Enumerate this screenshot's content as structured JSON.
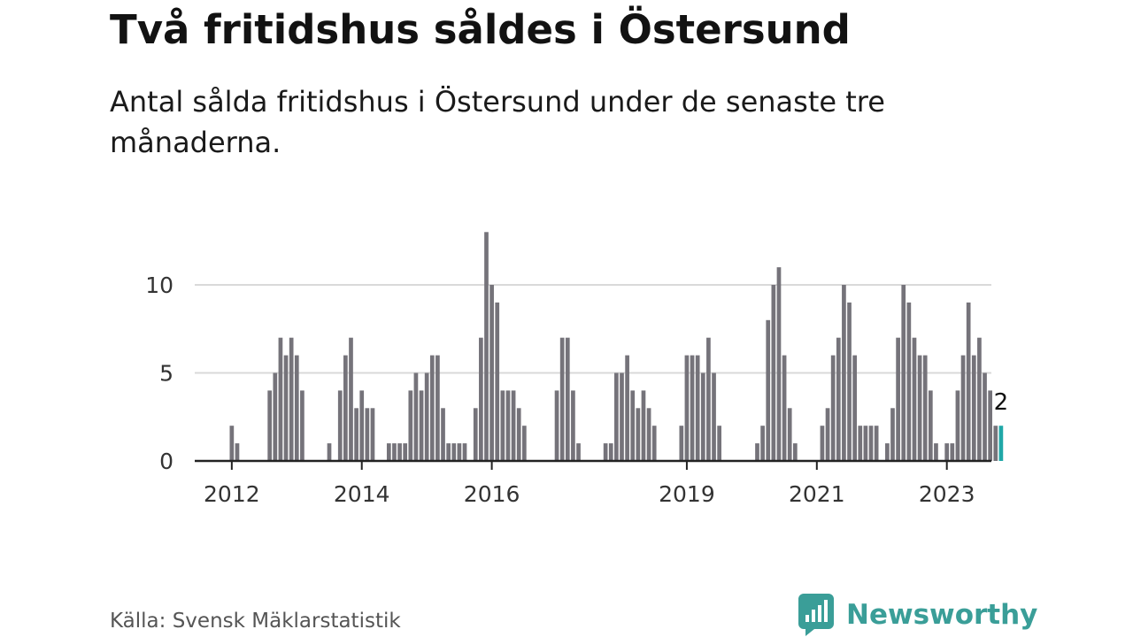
{
  "header": {
    "title": "Två fritidshus såldes i Östersund",
    "subtitle": "Antal sålda fritidshus i Östersund under de senaste tre månaderna."
  },
  "footer": {
    "source": "Källa: Svensk Mäklarstatistik",
    "brand_name": "Newsworthy",
    "brand_color": "#3a9e98",
    "brand_icon": "newsworthy-logo-icon"
  },
  "colors": {
    "bar": "#75737a",
    "highlight": "#20a8a8",
    "grid": "#d9d9d9",
    "axis": "#222222",
    "tick_text": "#333333"
  },
  "chart_data": {
    "type": "bar",
    "x_unit": "month",
    "x_start": "2011-06",
    "x_tick_labels": [
      "2012",
      "2014",
      "2016",
      "2019",
      "2021",
      "2023"
    ],
    "x_tick_positions": [
      "2012-01",
      "2014-01",
      "2016-01",
      "2019-01",
      "2021-01",
      "2023-01"
    ],
    "y_ticks": [
      0,
      5,
      10
    ],
    "ylim": [
      0,
      13
    ],
    "grid": "horizontal",
    "values": [
      0,
      0,
      0,
      0,
      0,
      0,
      0,
      2,
      1,
      0,
      0,
      0,
      0,
      0,
      4,
      5,
      7,
      6,
      7,
      6,
      4,
      0,
      0,
      0,
      0,
      1,
      0,
      4,
      6,
      7,
      3,
      4,
      3,
      3,
      0,
      0,
      1,
      1,
      1,
      1,
      4,
      5,
      4,
      5,
      6,
      6,
      3,
      1,
      1,
      1,
      1,
      0,
      3,
      7,
      13,
      10,
      9,
      4,
      4,
      4,
      3,
      2,
      0,
      0,
      0,
      0,
      0,
      4,
      7,
      7,
      4,
      1,
      0,
      0,
      0,
      0,
      1,
      1,
      5,
      5,
      6,
      4,
      3,
      4,
      3,
      2,
      0,
      0,
      0,
      0,
      2,
      6,
      6,
      6,
      5,
      7,
      5,
      2,
      0,
      0,
      0,
      0,
      0,
      0,
      1,
      2,
      8,
      10,
      11,
      6,
      3,
      1,
      0,
      0,
      0,
      0,
      2,
      3,
      6,
      7,
      10,
      9,
      6,
      2,
      2,
      2,
      2,
      0,
      1,
      3,
      7,
      10,
      9,
      7,
      6,
      6,
      4,
      1,
      0,
      1,
      1,
      4,
      6,
      9,
      6,
      7,
      5,
      4,
      2,
      2
    ],
    "highlight_last": true,
    "annotation": {
      "label": "2",
      "value": 2
    }
  }
}
